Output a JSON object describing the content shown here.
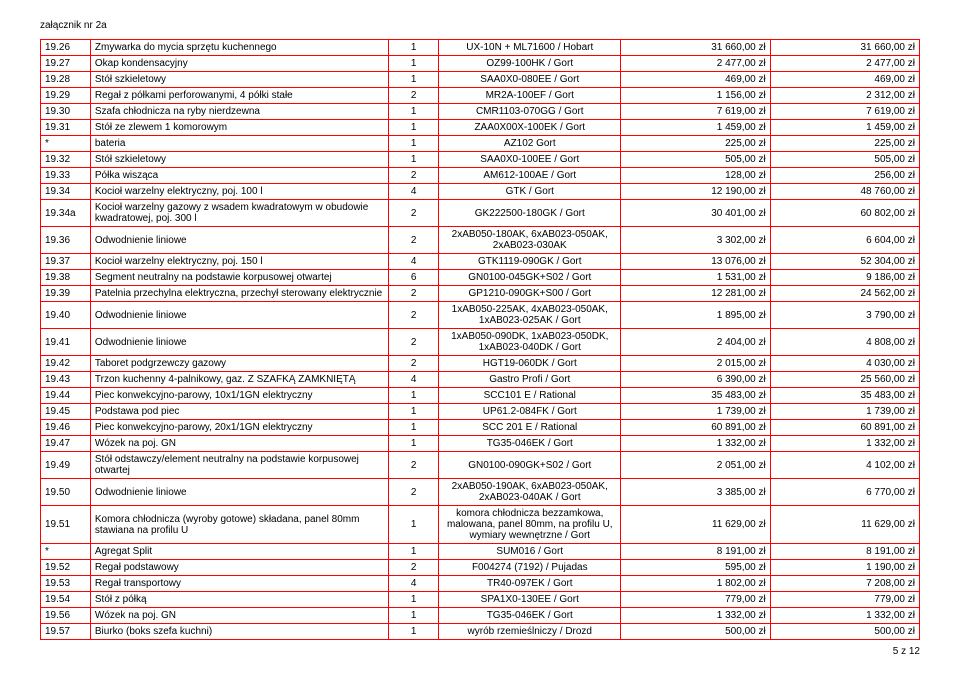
{
  "attachment_label": "załącznik nr 2a",
  "footer": "5 z 12",
  "rows": [
    {
      "num": "19.26",
      "desc": "Zmywarka do mycia sprzętu kuchennego",
      "qty": "1",
      "model": "UX-10N + ML71600 / Hobart",
      "p1": "31 660,00 zł",
      "p2": "31 660,00 zł"
    },
    {
      "num": "19.27",
      "desc": "Okap kondensacyjny",
      "qty": "1",
      "model": "OZ99-100HK / Gort",
      "p1": "2 477,00 zł",
      "p2": "2 477,00 zł"
    },
    {
      "num": "19.28",
      "desc": "Stół szkieletowy",
      "qty": "1",
      "model": "SAA0X0-080EE / Gort",
      "p1": "469,00 zł",
      "p2": "469,00 zł"
    },
    {
      "num": "19.29",
      "desc": "Regał z półkami perforowanymi, 4 półki stałe",
      "qty": "2",
      "model": "MR2A-100EF / Gort",
      "p1": "1 156,00 zł",
      "p2": "2 312,00 zł"
    },
    {
      "num": "19.30",
      "desc": "Szafa chłodnicza na ryby nierdzewna",
      "qty": "1",
      "model": "CMR1103-070GG / Gort",
      "p1": "7 619,00 zł",
      "p2": "7 619,00 zł"
    },
    {
      "num": "19.31",
      "desc": "Stół ze zlewem 1 komorowym",
      "qty": "1",
      "model": "ZAA0X00X-100EK / Gort",
      "p1": "1 459,00 zł",
      "p2": "1 459,00 zł"
    },
    {
      "num": "*",
      "desc": "bateria",
      "qty": "1",
      "model": "AZ102 Gort",
      "p1": "225,00 zł",
      "p2": "225,00 zł"
    },
    {
      "num": "19.32",
      "desc": "Stół szkieletowy",
      "qty": "1",
      "model": "SAA0X0-100EE / Gort",
      "p1": "505,00 zł",
      "p2": "505,00 zł"
    },
    {
      "num": "19.33",
      "desc": "Półka wisząca",
      "qty": "2",
      "model": "AM612-100AE / Gort",
      "p1": "128,00 zł",
      "p2": "256,00 zł"
    },
    {
      "num": "19.34",
      "desc": "Kocioł warzelny elektryczny, poj. 100 l",
      "qty": "4",
      "model": "GTK / Gort",
      "p1": "12 190,00 zł",
      "p2": "48 760,00 zł"
    },
    {
      "num": "19.34a",
      "desc": "Kocioł warzelny gazowy z wsadem kwadratowym w obudowie kwadratowej, poj. 300 l",
      "qty": "2",
      "model": "GK222500-180GK / Gort",
      "p1": "30 401,00 zł",
      "p2": "60 802,00 zł"
    },
    {
      "num": "19.36",
      "desc": "Odwodnienie liniowe",
      "qty": "2",
      "model": "2xAB050-180AK, 6xAB023-050AK, 2xAB023-030AK",
      "p1": "3 302,00 zł",
      "p2": "6 604,00 zł"
    },
    {
      "num": "19.37",
      "desc": "Kocioł warzelny elektryczny, poj. 150 l",
      "qty": "4",
      "model": "GTK1119-090GK / Gort",
      "p1": "13 076,00 zł",
      "p2": "52 304,00 zł"
    },
    {
      "num": "19.38",
      "desc": "Segment neutralny na podstawie korpusowej otwartej",
      "qty": "6",
      "model": "GN0100-045GK+S02 / Gort",
      "p1": "1 531,00 zł",
      "p2": "9 186,00 zł"
    },
    {
      "num": "19.39",
      "desc": "Patelnia przechylna elektryczna, przechył sterowany elektrycznie",
      "qty": "2",
      "model": "GP1210-090GK+S00 / Gort",
      "p1": "12 281,00 zł",
      "p2": "24 562,00 zł"
    },
    {
      "num": "19.40",
      "desc": "Odwodnienie liniowe",
      "qty": "2",
      "model": "1xAB050-225AK, 4xAB023-050AK, 1xAB023-025AK / Gort",
      "p1": "1 895,00 zł",
      "p2": "3 790,00 zł"
    },
    {
      "num": "19.41",
      "desc": "Odwodnienie liniowe",
      "qty": "2",
      "model": "1xAB050-090DK, 1xAB023-050DK, 1xAB023-040DK / Gort",
      "p1": "2 404,00 zł",
      "p2": "4 808,00 zł"
    },
    {
      "num": "19.42",
      "desc": "Taboret podgrzewczy gazowy",
      "qty": "2",
      "model": "HGT19-060DK / Gort",
      "p1": "2 015,00 zł",
      "p2": "4 030,00 zł"
    },
    {
      "num": "19.43",
      "desc": "Trzon kuchenny 4-palnikowy, gaz. Z SZAFKĄ ZAMKNIĘTĄ",
      "qty": "4",
      "model": "Gastro Profi / Gort",
      "p1": "6 390,00 zł",
      "p2": "25 560,00 zł"
    },
    {
      "num": "19.44",
      "desc": "Piec konwekcyjno-parowy, 10x1/1GN elektryczny",
      "qty": "1",
      "model": "SCC101 E / Rational",
      "p1": "35 483,00 zł",
      "p2": "35 483,00 zł"
    },
    {
      "num": "19.45",
      "desc": "Podstawa pod piec",
      "qty": "1",
      "model": "UP61.2-084FK / Gort",
      "p1": "1 739,00 zł",
      "p2": "1 739,00 zł"
    },
    {
      "num": "19.46",
      "desc": "Piec konwekcyjno-parowy, 20x1/1GN elektryczny",
      "qty": "1",
      "model": "SCC 201 E / Rational",
      "p1": "60 891,00 zł",
      "p2": "60 891,00 zł"
    },
    {
      "num": "19.47",
      "desc": "Wózek na poj. GN",
      "qty": "1",
      "model": "TG35-046EK / Gort",
      "p1": "1 332,00 zł",
      "p2": "1 332,00 zł"
    },
    {
      "num": "19.49",
      "desc": "Stół odstawczy/element neutralny na podstawie korpusowej otwartej",
      "qty": "2",
      "model": "GN0100-090GK+S02 / Gort",
      "p1": "2 051,00 zł",
      "p2": "4 102,00 zł"
    },
    {
      "num": "19.50",
      "desc": "Odwodnienie liniowe",
      "qty": "2",
      "model": "2xAB050-190AK, 6xAB023-050AK, 2xAB023-040AK / Gort",
      "p1": "3 385,00 zł",
      "p2": "6 770,00 zł"
    },
    {
      "num": "19.51",
      "desc": "Komora chłodnicza (wyroby gotowe) składana, panel 80mm stawiana na profilu U",
      "qty": "1",
      "model": "komora chłodnicza bezzamkowa, malowana, panel 80mm, na profilu U, wymiary wewnętrzne / Gort",
      "p1": "11 629,00 zł",
      "p2": "11 629,00 zł"
    },
    {
      "num": "*",
      "desc": "Agregat Split",
      "qty": "1",
      "model": "SUM016 / Gort",
      "p1": "8 191,00 zł",
      "p2": "8 191,00 zł"
    },
    {
      "num": "19.52",
      "desc": "Regał podstawowy",
      "qty": "2",
      "model": "F004274 (7192) / Pujadas",
      "p1": "595,00 zł",
      "p2": "1 190,00 zł"
    },
    {
      "num": "19.53",
      "desc": "Regał transportowy",
      "qty": "4",
      "model": "TR40-097EK / Gort",
      "p1": "1 802,00 zł",
      "p2": "7 208,00 zł"
    },
    {
      "num": "19.54",
      "desc": "Stół z półką",
      "qty": "1",
      "model": "SPA1X0-130EE / Gort",
      "p1": "779,00 zł",
      "p2": "779,00 zł"
    },
    {
      "num": "19.56",
      "desc": "Wózek na poj. GN",
      "qty": "1",
      "model": "TG35-046EK / Gort",
      "p1": "1 332,00 zł",
      "p2": "1 332,00 zł"
    },
    {
      "num": "19.57",
      "desc": "Biurko (boks szefa kuchni)",
      "qty": "1",
      "model": "wyrób rzemieślniczy / Drozd",
      "p1": "500,00 zł",
      "p2": "500,00 zł"
    }
  ]
}
